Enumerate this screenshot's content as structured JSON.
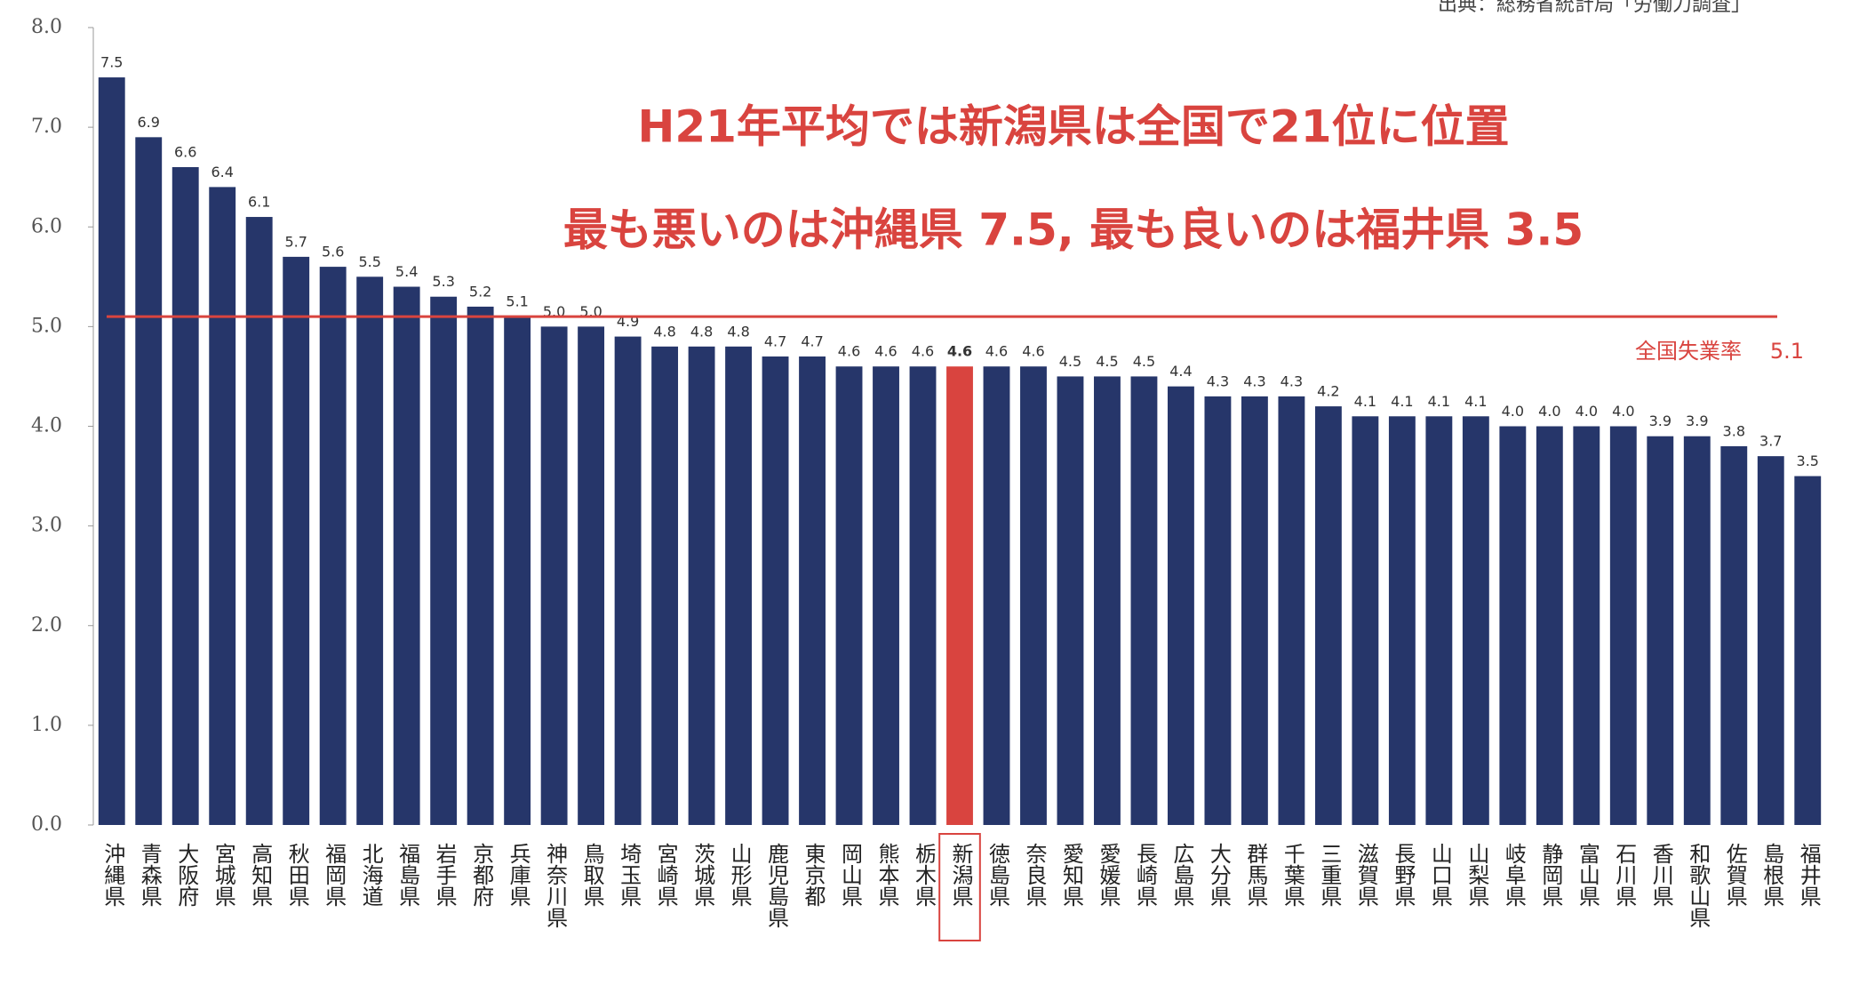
{
  "chart_data": {
    "type": "bar",
    "title": "H21年平均では新潟県は全国で21位に位置",
    "subtitle": "最も悪いのは沖縄県 7.5, 最も良いのは福井県 3.5",
    "source": "出典：総務省統計局「労働力調査」",
    "categories": [
      "沖縄県",
      "青森県",
      "大阪府",
      "宮城県",
      "高知県",
      "秋田県",
      "福岡県",
      "北海道",
      "福島県",
      "岩手県",
      "京都府",
      "兵庫県",
      "神奈川県",
      "鳥取県",
      "埼玉県",
      "宮崎県",
      "茨城県",
      "山形県",
      "鹿児島県",
      "東京都",
      "岡山県",
      "熊本県",
      "栃木県",
      "新潟県",
      "徳島県",
      "奈良県",
      "愛知県",
      "愛媛県",
      "長崎県",
      "広島県",
      "大分県",
      "群馬県",
      "千葉県",
      "三重県",
      "滋賀県",
      "長野県",
      "山口県",
      "山梨県",
      "岐阜県",
      "静岡県",
      "富山県",
      "石川県",
      "香川県",
      "和歌山県",
      "佐賀県",
      "島根県",
      "福井県"
    ],
    "values": [
      7.5,
      6.9,
      6.6,
      6.4,
      6.1,
      5.7,
      5.6,
      5.5,
      5.4,
      5.3,
      5.2,
      5.1,
      5.0,
      5.0,
      4.9,
      4.8,
      4.8,
      4.8,
      4.7,
      4.7,
      4.6,
      4.6,
      4.6,
      4.6,
      4.6,
      4.6,
      4.5,
      4.5,
      4.5,
      4.4,
      4.3,
      4.3,
      4.3,
      4.2,
      4.1,
      4.1,
      4.1,
      4.1,
      4.0,
      4.0,
      4.0,
      4.0,
      3.9,
      3.9,
      3.8,
      3.7,
      3.5
    ],
    "value_labels": [
      "7.5",
      "6.9",
      "6.6",
      "6.4",
      "6.1",
      "5.7",
      "5.6",
      "5.5",
      "5.4",
      "5.3",
      "5.2",
      "5.1",
      "5.0",
      "5.0",
      "4.9",
      "4.8",
      "4.8",
      "4.8",
      "4.7",
      "4.7",
      "4.6",
      "4.6",
      "4.6",
      "4.6",
      "4.6",
      "4.6",
      "4.5",
      "4.5",
      "4.5",
      "4.4",
      "4.3",
      "4.3",
      "4.3",
      "4.2",
      "4.1",
      "4.1",
      "4.1",
      "4.1",
      "4.0",
      "4.0",
      "4.0",
      "4.0",
      "3.9",
      "3.9",
      "3.8",
      "3.7",
      "3.5"
    ],
    "color": "#26366a",
    "highlight": {
      "category": "新潟県",
      "color": "#d9443f"
    },
    "reference": {
      "label": "全国失業率",
      "value": 5.1,
      "color": "#d9443f"
    },
    "ylim": [
      0,
      8
    ],
    "yticks": [
      {
        "value": 0,
        "label": "0.0"
      },
      {
        "value": 1,
        "label": "1.0"
      },
      {
        "value": 2,
        "label": "2.0"
      },
      {
        "value": 3,
        "label": "3.0"
      },
      {
        "value": 4,
        "label": "4.0"
      },
      {
        "value": 5,
        "label": "5.0"
      },
      {
        "value": 6,
        "label": "6.0"
      },
      {
        "value": 7,
        "label": "7.0"
      },
      {
        "value": 8,
        "label": "8.0"
      }
    ]
  }
}
